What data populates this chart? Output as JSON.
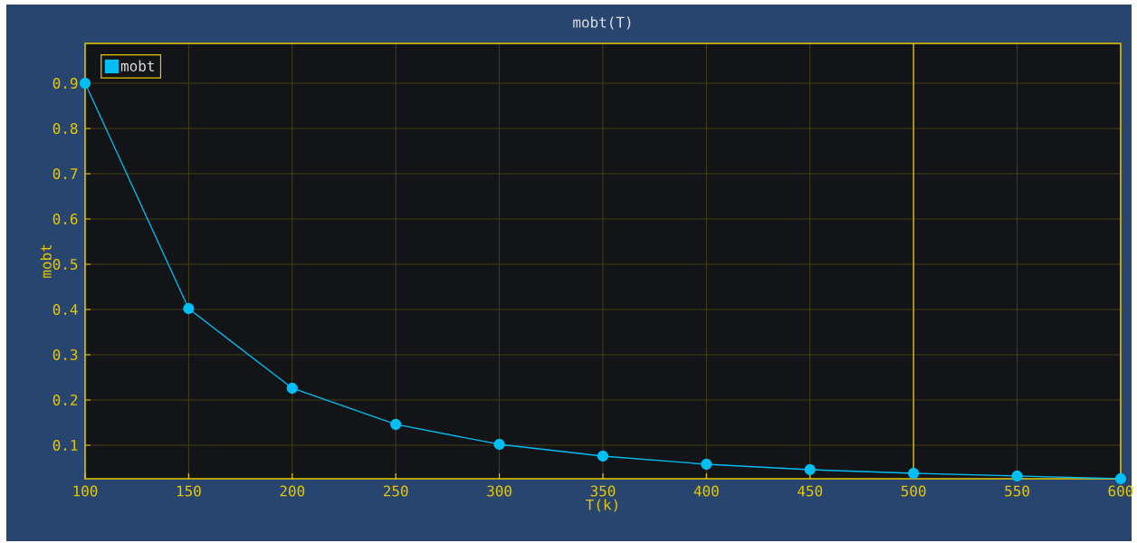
{
  "chart_data": {
    "type": "line",
    "title": "mobt(T)",
    "xlabel": "T(k)",
    "ylabel": "mobt",
    "x": [
      100,
      150,
      200,
      250,
      300,
      350,
      400,
      450,
      500,
      550,
      600
    ],
    "series": [
      {
        "name": "mobt",
        "color": "#00bff5",
        "values": [
          0.9,
          0.402,
          0.226,
          0.146,
          0.102,
          0.076,
          0.058,
          0.046,
          0.038,
          0.032,
          0.026
        ]
      }
    ],
    "xlim": [
      100,
      600
    ],
    "ylim": [
      0.026,
      0.988
    ],
    "xticks": [
      100,
      150,
      200,
      250,
      300,
      350,
      400,
      450,
      500,
      550,
      600
    ],
    "yticks": [
      0.1,
      0.2,
      0.3,
      0.4,
      0.5,
      0.6,
      0.7,
      0.8,
      0.9
    ],
    "ref_lines": [
      {
        "axis": "x",
        "value": 500,
        "color": "#e6c800"
      }
    ],
    "grid": true,
    "legend": "top left",
    "marker": "circle",
    "line_style": "solid"
  }
}
